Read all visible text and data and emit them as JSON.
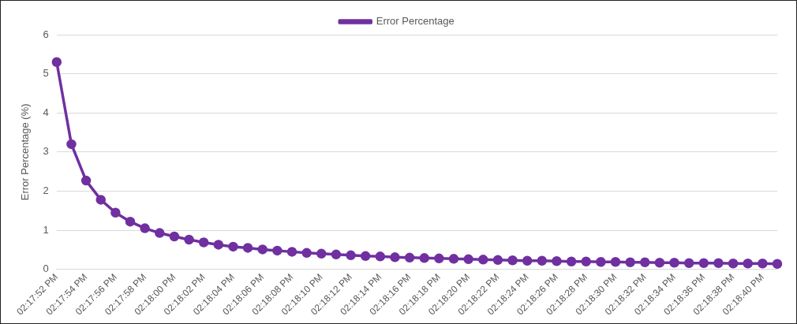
{
  "chart_data": {
    "type": "line",
    "ylabel": "Error Percentage (%)",
    "categories": [
      "02:17:52 PM",
      null,
      "02:17:54 PM",
      null,
      "02:17:56 PM",
      null,
      "02:17:58 PM",
      null,
      "02:18:00 PM",
      null,
      "02:18:02 PM",
      null,
      "02:18:04 PM",
      null,
      "02:18:06 PM",
      null,
      "02:18:08 PM",
      null,
      "02:18:10 PM",
      null,
      "02:18:12 PM",
      null,
      "02:18:14 PM",
      null,
      "02:18:16 PM",
      null,
      "02:18:18 PM",
      null,
      "02:18:20 PM",
      null,
      "02:18:22 PM",
      null,
      "02:18:24 PM",
      null,
      "02:18:26 PM",
      null,
      "02:18:28 PM",
      null,
      "02:18:30 PM",
      null,
      "02:18:32 PM",
      null,
      "02:18:34 PM",
      null,
      "02:18:36 PM",
      null,
      "02:18:38 PM",
      null,
      "02:18:40 PM",
      null
    ],
    "series": [
      {
        "name": "Error Percentage",
        "color": "#7030a0",
        "values": [
          5.3,
          3.2,
          2.27,
          1.78,
          1.45,
          1.22,
          1.05,
          0.93,
          0.84,
          0.76,
          0.69,
          0.63,
          0.58,
          0.55,
          0.51,
          0.48,
          0.45,
          0.42,
          0.4,
          0.38,
          0.36,
          0.34,
          0.33,
          0.31,
          0.3,
          0.29,
          0.28,
          0.27,
          0.26,
          0.25,
          0.24,
          0.23,
          0.22,
          0.22,
          0.21,
          0.2,
          0.2,
          0.19,
          0.19,
          0.18,
          0.18,
          0.17,
          0.17,
          0.16,
          0.16,
          0.16,
          0.15,
          0.15,
          0.15,
          0.14
        ]
      }
    ],
    "ylim": [
      0,
      6
    ],
    "yticks": [
      0,
      1,
      2,
      3,
      4,
      5,
      6
    ],
    "grid": "y",
    "legend": "top",
    "marker": "circle",
    "line_style": "solid"
  }
}
